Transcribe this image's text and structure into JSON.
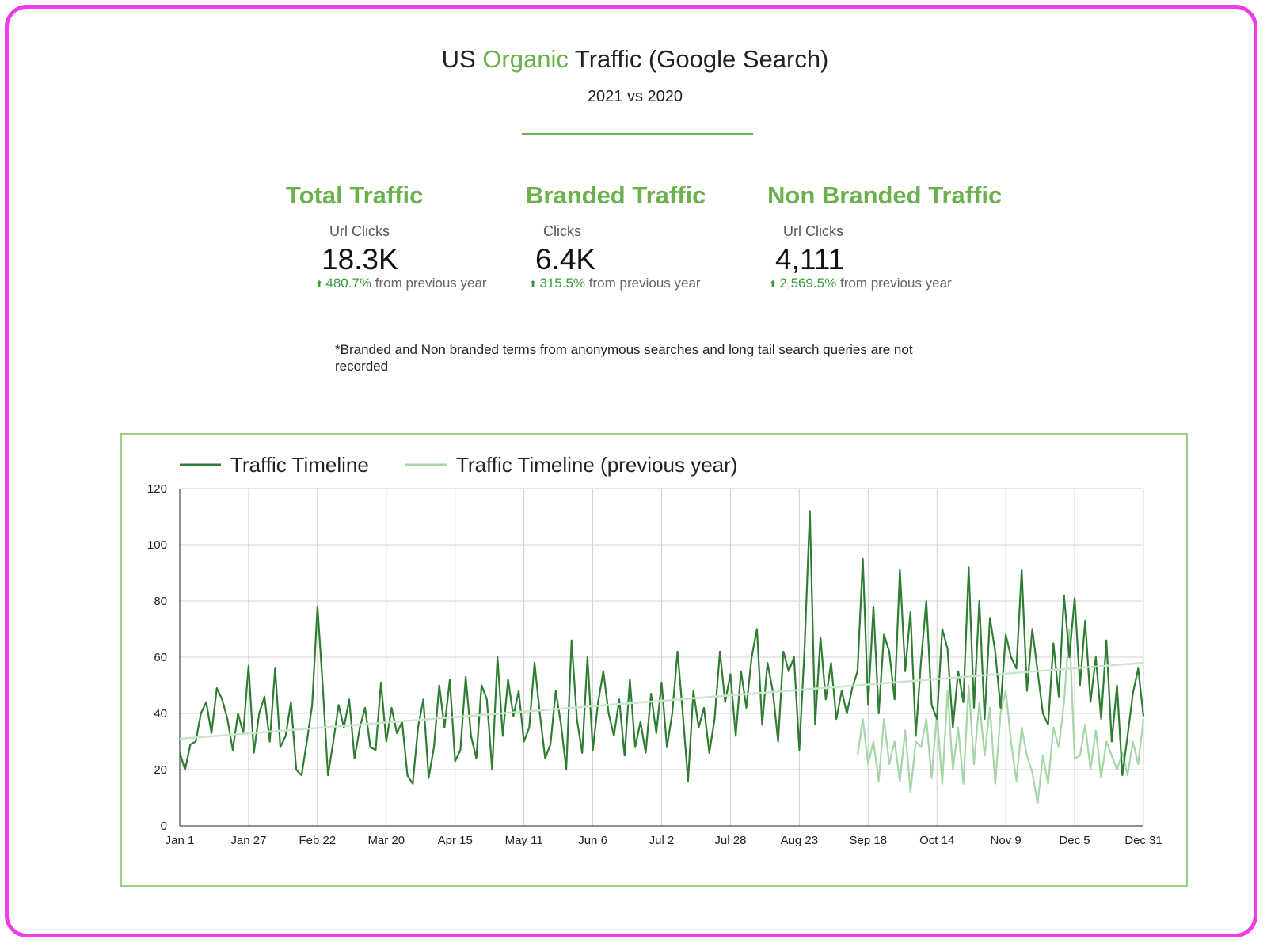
{
  "header": {
    "title": [
      "US",
      "Organic",
      "Traffic (Google Search)"
    ],
    "subtitle": "2021 vs 2020"
  },
  "kpis": [
    {
      "title": "Total Traffic",
      "label": "Url Clicks",
      "value": "18.3K",
      "change": "480.7%",
      "change_text": "from previous year"
    },
    {
      "title": "Branded Traffic",
      "label": "Clicks",
      "value": "6.4K",
      "change": "315.5%",
      "change_text": "from previous year"
    },
    {
      "title": "Non Branded Traffic",
      "label": "Url Clicks",
      "value": "4,111",
      "change": "2,569.5%",
      "change_text": "from previous year"
    }
  ],
  "note": "*Branded and Non branded terms from anonymous searches and long tail search queries are not recorded",
  "chart_data": {
    "type": "line",
    "categories": [
      "Jan 1",
      null,
      null,
      null,
      null,
      null,
      null,
      null,
      null,
      null,
      null,
      null,
      null,
      "Jan 27",
      null,
      null,
      null,
      null,
      null,
      null,
      null,
      null,
      null,
      null,
      null,
      null,
      "Feb 22",
      null,
      null,
      null,
      null,
      null,
      null,
      null,
      null,
      null,
      null,
      null,
      null,
      "Mar 20",
      null,
      null,
      null,
      null,
      null,
      null,
      null,
      null,
      null,
      null,
      null,
      null,
      "Apr 15",
      null,
      null,
      null,
      null,
      null,
      null,
      null,
      null,
      null,
      null,
      null,
      null,
      "May 11",
      null,
      null,
      null,
      null,
      null,
      null,
      null,
      null,
      null,
      null,
      null,
      null,
      "Jun 6",
      null,
      null,
      null,
      null,
      null,
      null,
      null,
      null,
      null,
      null,
      null,
      null,
      "Jul 2",
      null,
      null,
      null,
      null,
      null,
      null,
      null,
      null,
      null,
      null,
      null,
      null,
      "Jul 28",
      null,
      null,
      null,
      null,
      null,
      null,
      null,
      null,
      null,
      null,
      null,
      null,
      "Aug 23",
      null,
      null,
      null,
      null,
      null,
      null,
      null,
      null,
      null,
      null,
      null,
      null,
      "Sep 18",
      null,
      null,
      null,
      null,
      null,
      null,
      null,
      null,
      null,
      null,
      null,
      null,
      "Oct 14",
      null,
      null,
      null,
      null,
      null,
      null,
      null,
      null,
      null,
      null,
      null,
      null,
      "Nov 9",
      null,
      null,
      null,
      null,
      null,
      null,
      null,
      null,
      null,
      null,
      null,
      null,
      "Dec 5",
      null,
      null,
      null,
      null,
      null,
      null,
      null,
      null,
      null,
      null,
      null,
      null,
      "Dec 31"
    ],
    "series": [
      {
        "name": "Traffic Timeline",
        "color": "#2e7d32",
        "values": [
          26,
          20,
          29,
          30,
          40,
          44,
          33,
          49,
          45,
          38,
          27,
          40,
          33,
          57,
          26,
          40,
          46,
          30,
          56,
          28,
          32,
          44,
          20,
          18,
          30,
          43,
          78,
          50,
          18,
          30,
          43,
          35,
          45,
          24,
          35,
          42,
          28,
          27,
          51,
          30,
          42,
          33,
          37,
          18,
          15,
          35,
          45,
          17,
          28,
          50,
          35,
          52,
          23,
          27,
          53,
          32,
          24,
          50,
          45,
          20,
          60,
          32,
          52,
          39,
          48,
          30,
          35,
          58,
          40,
          24,
          29,
          48,
          36,
          20,
          66,
          38,
          26,
          60,
          27,
          44,
          55,
          40,
          32,
          45,
          25,
          52,
          28,
          37,
          26,
          47,
          33,
          51,
          28,
          40,
          62,
          40,
          16,
          48,
          35,
          42,
          26,
          38,
          62,
          44,
          54,
          32,
          55,
          42,
          60,
          70,
          36,
          58,
          48,
          30,
          62,
          55,
          60,
          27,
          63,
          112,
          36,
          67,
          45,
          58,
          38,
          48,
          40,
          49,
          55,
          95,
          43,
          78,
          40,
          68,
          62,
          45,
          91,
          55,
          76,
          32,
          59,
          80,
          43,
          38,
          70,
          63,
          35,
          55,
          44,
          92,
          42,
          80,
          38,
          74,
          62,
          42,
          68,
          60,
          56,
          91,
          48,
          70,
          55,
          40,
          36,
          65,
          46,
          82,
          60,
          81,
          50,
          73,
          44,
          60,
          38,
          66,
          30,
          50,
          18,
          32,
          47,
          56,
          39
        ]
      },
      {
        "name": "Traffic Timeline (previous year)",
        "color": "#a5d6a7",
        "values": [
          null,
          null,
          null,
          null,
          null,
          null,
          null,
          null,
          null,
          null,
          null,
          null,
          null,
          null,
          null,
          null,
          null,
          null,
          null,
          null,
          null,
          null,
          null,
          null,
          null,
          null,
          null,
          null,
          null,
          null,
          null,
          null,
          null,
          null,
          null,
          null,
          null,
          null,
          null,
          null,
          null,
          null,
          null,
          null,
          null,
          null,
          null,
          null,
          null,
          null,
          null,
          null,
          null,
          null,
          null,
          null,
          null,
          null,
          null,
          null,
          null,
          null,
          null,
          null,
          null,
          null,
          null,
          null,
          null,
          null,
          null,
          null,
          null,
          null,
          null,
          null,
          null,
          null,
          null,
          null,
          null,
          null,
          null,
          null,
          null,
          null,
          null,
          null,
          null,
          null,
          null,
          null,
          null,
          null,
          null,
          null,
          null,
          null,
          null,
          null,
          null,
          null,
          null,
          null,
          null,
          null,
          null,
          null,
          null,
          null,
          null,
          null,
          null,
          null,
          null,
          null,
          null,
          null,
          null,
          null,
          null,
          null,
          null,
          null,
          null,
          null,
          null,
          null,
          25,
          38,
          22,
          30,
          16,
          38,
          22,
          30,
          16,
          34,
          12,
          30,
          28,
          38,
          17,
          40,
          15,
          48,
          20,
          35,
          15,
          50,
          22,
          44,
          25,
          42,
          15,
          40,
          48,
          30,
          16,
          35,
          25,
          19,
          8,
          25,
          15,
          35,
          28,
          44,
          70,
          24,
          25,
          36,
          20,
          34,
          17,
          30,
          25,
          20,
          26,
          18,
          30,
          22,
          38
        ]
      }
    ],
    "trendline": [
      31,
      58
    ],
    "trend_color": "#c8e6c9",
    "ylim": [
      0,
      120
    ],
    "yticks": [
      0,
      20,
      40,
      60,
      80,
      100,
      120
    ],
    "grid": true
  }
}
